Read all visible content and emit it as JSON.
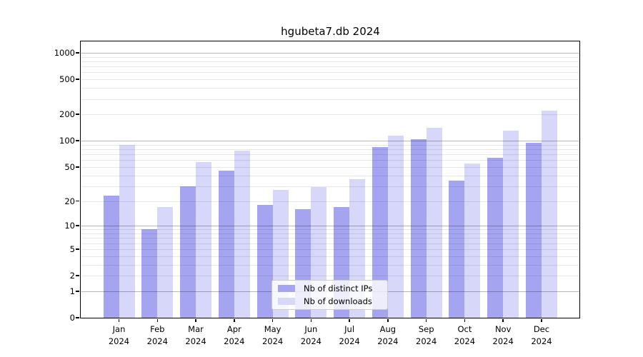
{
  "chart_data": {
    "type": "bar",
    "title": "hgubeta7.db 2024",
    "categories": [
      "Jan",
      "Feb",
      "Mar",
      "Apr",
      "May",
      "Jun",
      "Jul",
      "Aug",
      "Sep",
      "Oct",
      "Nov",
      "Dec"
    ],
    "year": "2024",
    "series": [
      {
        "name": "Nb of distinct IPs",
        "color": "#a4a4f0",
        "values": [
          23,
          9,
          30,
          45,
          18,
          16,
          17,
          85,
          105,
          35,
          64,
          95
        ]
      },
      {
        "name": "Nb of downloads",
        "color": "#d7d7f9",
        "values": [
          90,
          17,
          57,
          77,
          27,
          29,
          36,
          115,
          140,
          55,
          130,
          220
        ]
      }
    ],
    "yticks": [
      0,
      1,
      2,
      5,
      10,
      20,
      50,
      100,
      200,
      500,
      1000
    ],
    "ylim": [
      0,
      1335
    ],
    "yscale": "log10(1+v)",
    "grid": "on",
    "legend_position": "lower center",
    "colors": {
      "axis": "#000000",
      "grid_major": "rgba(0,0,0,0.28)",
      "grid_minor": "rgba(0,0,0,0.09)"
    }
  }
}
